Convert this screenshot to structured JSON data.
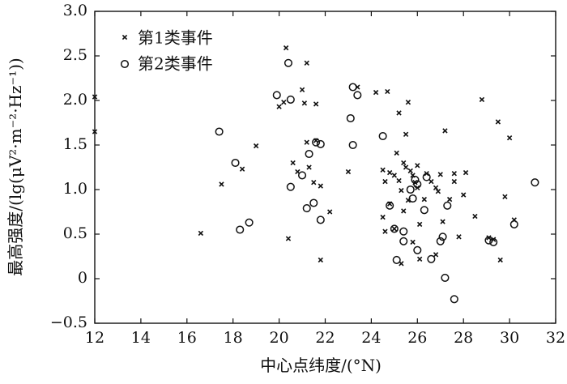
{
  "chart_data": {
    "type": "scatter",
    "title": "",
    "xlabel": "中心点纬度/(°N)",
    "ylabel": "最高强度/(lg(μV²·m⁻²·Hz⁻¹))",
    "xlim": [
      12,
      32
    ],
    "ylim": [
      -0.5,
      3.0
    ],
    "xticks": [
      12,
      14,
      16,
      18,
      20,
      22,
      24,
      26,
      28,
      30,
      32
    ],
    "yticks": [
      "−0.5",
      "0",
      "0.5",
      "1.0",
      "1.5",
      "2.0",
      "2.5",
      "3.0"
    ],
    "legend_position": "top-left",
    "grid": false,
    "series": [
      {
        "name": "第1类事件",
        "marker": "x",
        "points": [
          [
            12.0,
            2.04
          ],
          [
            12.0,
            1.65
          ],
          [
            16.6,
            0.51
          ],
          [
            17.5,
            1.06
          ],
          [
            18.4,
            1.23
          ],
          [
            19.0,
            1.49
          ],
          [
            20.0,
            1.93
          ],
          [
            20.3,
            2.59
          ],
          [
            20.2,
            1.98
          ],
          [
            20.4,
            0.45
          ],
          [
            20.6,
            1.3
          ],
          [
            20.8,
            1.2
          ],
          [
            21.0,
            2.12
          ],
          [
            21.1,
            1.97
          ],
          [
            21.2,
            2.42
          ],
          [
            21.2,
            1.53
          ],
          [
            21.3,
            1.25
          ],
          [
            21.5,
            1.08
          ],
          [
            21.6,
            1.96
          ],
          [
            21.6,
            1.55
          ],
          [
            21.8,
            1.04
          ],
          [
            21.8,
            0.21
          ],
          [
            22.2,
            0.75
          ],
          [
            23.0,
            1.2
          ],
          [
            23.4,
            2.15
          ],
          [
            24.2,
            2.09
          ],
          [
            24.5,
            1.22
          ],
          [
            24.5,
            0.69
          ],
          [
            24.6,
            1.09
          ],
          [
            24.6,
            0.53
          ],
          [
            24.7,
            2.1
          ],
          [
            24.8,
            1.19
          ],
          [
            24.8,
            0.84
          ],
          [
            25.0,
            1.16
          ],
          [
            25.0,
            0.56
          ],
          [
            25.1,
            1.41
          ],
          [
            25.2,
            1.86
          ],
          [
            25.2,
            1.1
          ],
          [
            25.3,
            0.99
          ],
          [
            25.3,
            0.17
          ],
          [
            25.4,
            1.3
          ],
          [
            25.4,
            0.76
          ],
          [
            25.5,
            1.62
          ],
          [
            25.5,
            1.25
          ],
          [
            25.6,
            1.98
          ],
          [
            25.6,
            0.88
          ],
          [
            25.7,
            1.21
          ],
          [
            25.8,
            1.16
          ],
          [
            25.8,
            0.41
          ],
          [
            25.9,
            1.08
          ],
          [
            26.0,
            1.27
          ],
          [
            26.0,
            1.02
          ],
          [
            26.1,
            0.61
          ],
          [
            26.1,
            0.22
          ],
          [
            26.3,
            0.89
          ],
          [
            26.4,
            1.18
          ],
          [
            26.6,
            1.09
          ],
          [
            26.8,
            1.02
          ],
          [
            26.8,
            0.27
          ],
          [
            26.9,
            0.98
          ],
          [
            27.0,
            1.17
          ],
          [
            27.1,
            0.64
          ],
          [
            27.2,
            1.66
          ],
          [
            27.4,
            0.89
          ],
          [
            27.6,
            1.18
          ],
          [
            27.6,
            1.09
          ],
          [
            27.8,
            0.47
          ],
          [
            28.0,
            0.94
          ],
          [
            28.1,
            1.19
          ],
          [
            28.5,
            0.7
          ],
          [
            28.8,
            2.01
          ],
          [
            29.1,
            0.46
          ],
          [
            29.3,
            0.44
          ],
          [
            29.5,
            1.76
          ],
          [
            29.6,
            0.21
          ],
          [
            29.8,
            0.92
          ],
          [
            30.0,
            1.58
          ],
          [
            30.2,
            0.66
          ]
        ]
      },
      {
        "name": "第2类事件",
        "marker": "o",
        "points": [
          [
            17.4,
            1.65
          ],
          [
            18.1,
            1.3
          ],
          [
            18.3,
            0.55
          ],
          [
            18.7,
            0.63
          ],
          [
            19.9,
            2.06
          ],
          [
            20.4,
            2.42
          ],
          [
            20.5,
            2.01
          ],
          [
            20.5,
            1.03
          ],
          [
            21.0,
            1.16
          ],
          [
            21.2,
            0.79
          ],
          [
            21.3,
            1.4
          ],
          [
            21.5,
            0.85
          ],
          [
            21.6,
            1.53
          ],
          [
            21.8,
            1.51
          ],
          [
            21.8,
            0.66
          ],
          [
            23.1,
            1.8
          ],
          [
            23.2,
            2.15
          ],
          [
            23.2,
            1.5
          ],
          [
            23.4,
            2.06
          ],
          [
            24.5,
            1.6
          ],
          [
            24.8,
            0.82
          ],
          [
            25.0,
            0.56
          ],
          [
            25.1,
            0.21
          ],
          [
            25.4,
            0.42
          ],
          [
            25.4,
            0.53
          ],
          [
            25.7,
            1.0
          ],
          [
            25.8,
            0.9
          ],
          [
            25.9,
            1.11
          ],
          [
            26.0,
            0.32
          ],
          [
            26.0,
            1.06
          ],
          [
            26.3,
            0.77
          ],
          [
            26.4,
            1.14
          ],
          [
            26.6,
            0.22
          ],
          [
            27.0,
            0.42
          ],
          [
            27.1,
            0.47
          ],
          [
            27.2,
            0.01
          ],
          [
            27.3,
            0.82
          ],
          [
            27.6,
            -0.23
          ],
          [
            29.1,
            0.43
          ],
          [
            29.3,
            0.41
          ],
          [
            30.2,
            0.61
          ],
          [
            31.1,
            1.08
          ]
        ]
      }
    ]
  }
}
